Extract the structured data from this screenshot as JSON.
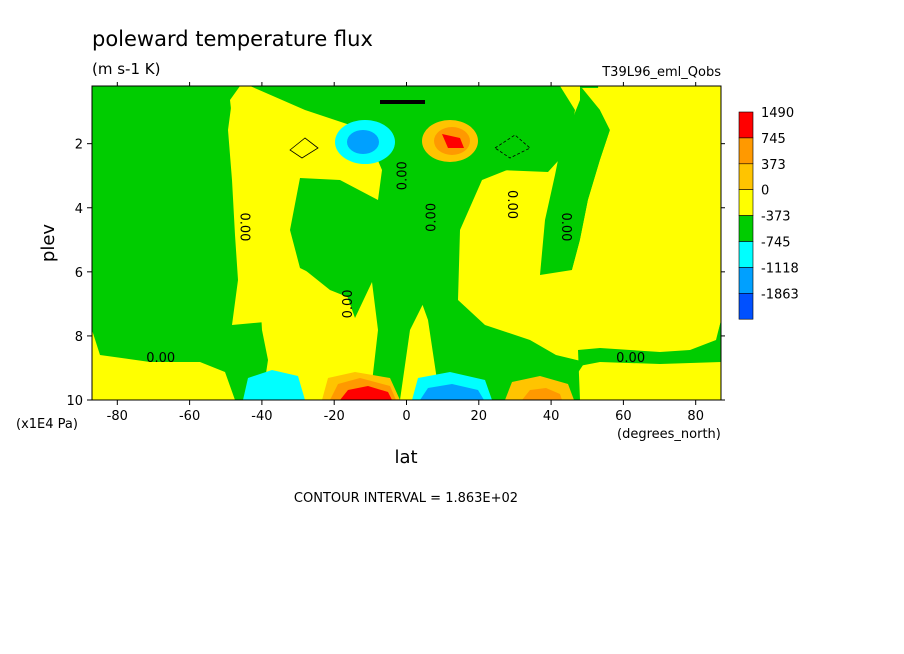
{
  "chart_data": {
    "type": "heatmap",
    "title": "poleward temperature flux",
    "subtitle": "(m s-1 K)",
    "run_label": "T39L96_eml_Qobs",
    "xlabel": "lat",
    "x_units": "(degrees_north)",
    "ylabel": "plev",
    "y_units": "(x1E4 Pa)",
    "footer": "CONTOUR INTERVAL = 1.863E+02",
    "xlim": [
      -87,
      87
    ],
    "ylim": [
      0.2,
      10
    ],
    "y_inverted": true,
    "x_ticks": [
      {
        "v": -80,
        "label": "-80"
      },
      {
        "v": -60,
        "label": "-60"
      },
      {
        "v": -40,
        "label": "-40"
      },
      {
        "v": -20,
        "label": "-20"
      },
      {
        "v": 0,
        "label": "0"
      },
      {
        "v": 20,
        "label": "20"
      },
      {
        "v": 40,
        "label": "40"
      },
      {
        "v": 60,
        "label": "60"
      },
      {
        "v": 80,
        "label": "80"
      }
    ],
    "y_ticks": [
      {
        "v": 2,
        "label": "2"
      },
      {
        "v": 4,
        "label": "4"
      },
      {
        "v": 6,
        "label": "6"
      },
      {
        "v": 8,
        "label": "8"
      },
      {
        "v": 10,
        "label": "10"
      }
    ],
    "colorbar": [
      {
        "label": "1490",
        "color": "#ff0000"
      },
      {
        "label": "745",
        "color": "#ff9900"
      },
      {
        "label": "373",
        "color": "#ffc400"
      },
      {
        "label": "0",
        "color": "#ffff00"
      },
      {
        "label": "-373",
        "color": "#00cc00"
      },
      {
        "label": "-745",
        "color": "#00ffff"
      },
      {
        "label": "-1118",
        "color": "#00a0ff"
      },
      {
        "label": "-1863",
        "color": "#0050ff"
      }
    ],
    "contour_labels": [
      {
        "text": "0.00",
        "x": -68,
        "y": 8.7,
        "rot": 0
      },
      {
        "text": "0.00",
        "x": -45,
        "y": 4.6,
        "rot": 90
      },
      {
        "text": "0.00",
        "x": -16,
        "y": 7.0,
        "rot": -90
      },
      {
        "text": "0.00",
        "x": -1,
        "y": 3.0,
        "rot": -90
      },
      {
        "text": "0.00",
        "x": 7,
        "y": 4.3,
        "rot": -90
      },
      {
        "text": "0.00",
        "x": 29,
        "y": 3.9,
        "rot": 90
      },
      {
        "text": "0.00",
        "x": 44,
        "y": 4.6,
        "rot": 90
      },
      {
        "text": "0.00",
        "x": 62,
        "y": 8.7,
        "rot": 0
      }
    ],
    "features": [
      {
        "name": "upper-negative-flux-core",
        "x": -10,
        "y": 1.9,
        "value": -1118
      },
      {
        "name": "upper-positive-flux-core",
        "x": 12,
        "y": 1.9,
        "value": 1490
      },
      {
        "name": "lower-negative-flux-south",
        "x": -37,
        "y": 9.8,
        "value": -745
      },
      {
        "name": "lower-positive-flux-south",
        "x": -12,
        "y": 9.8,
        "value": 1490
      },
      {
        "name": "lower-negative-flux-north",
        "x": 13,
        "y": 9.8,
        "value": -1118
      },
      {
        "name": "lower-positive-flux-north",
        "x": 37,
        "y": 9.8,
        "value": 745
      }
    ]
  }
}
